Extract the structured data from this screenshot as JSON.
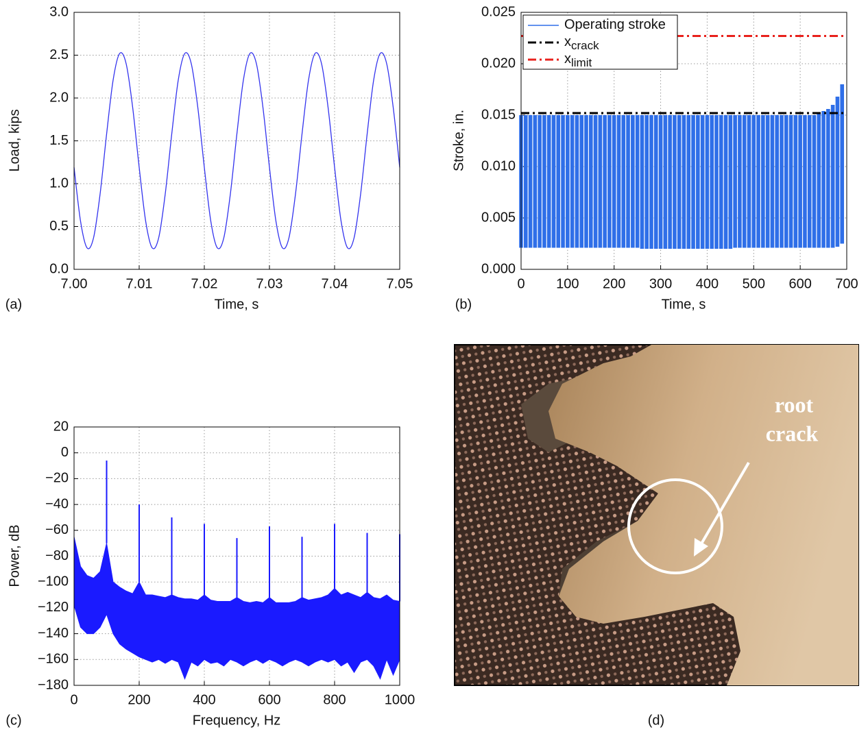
{
  "chart_data": [
    {
      "type": "line",
      "panel": "(a)",
      "xlabel": "Time, s",
      "ylabel": "Load, kips",
      "color": "#3333ee",
      "grid": true,
      "xlim": [
        7.0,
        7.05
      ],
      "xticks": [
        {
          "value": 7.0,
          "label": "7.00"
        },
        7.01,
        7.02,
        7.03,
        7.04,
        7.05
      ],
      "ylim": [
        0,
        3
      ],
      "yticks": [
        {
          "value": 0,
          "label": "0.0"
        },
        0.5,
        {
          "value": 1,
          "label": "1.0"
        },
        1.5,
        {
          "value": 2,
          "label": "2.0"
        },
        2.5,
        {
          "value": 3,
          "label": "3.0"
        }
      ],
      "x": [
        7.0,
        7.001,
        7.002,
        7.003,
        7.004,
        7.005,
        7.006,
        7.007,
        7.008,
        7.009,
        7.01,
        7.011,
        7.012,
        7.013,
        7.014,
        7.015,
        7.016,
        7.017,
        7.018,
        7.019,
        7.02,
        7.021,
        7.022,
        7.023,
        7.024,
        7.025,
        7.026,
        7.027,
        7.028,
        7.029,
        7.03,
        7.031,
        7.032,
        7.033,
        7.034,
        7.035,
        7.036,
        7.037,
        7.038,
        7.039,
        7.04,
        7.041,
        7.042,
        7.043,
        7.044,
        7.045,
        7.046,
        7.047,
        7.048,
        7.049,
        7.05
      ],
      "values": [
        1.19,
        0.56,
        0.25,
        0.37,
        0.88,
        1.58,
        2.21,
        2.52,
        2.4,
        1.89,
        1.19,
        0.56,
        0.25,
        0.37,
        0.88,
        1.58,
        2.21,
        2.52,
        2.4,
        1.89,
        1.19,
        0.56,
        0.25,
        0.37,
        0.88,
        1.58,
        2.21,
        2.52,
        2.4,
        1.89,
        1.19,
        0.56,
        0.25,
        0.37,
        0.88,
        1.58,
        2.21,
        2.52,
        2.4,
        1.89,
        1.19,
        0.56,
        0.25,
        0.37,
        0.88,
        1.58,
        2.21,
        2.52,
        2.4,
        1.89,
        1.19
      ]
    },
    {
      "type": "range",
      "panel": "(b)",
      "xlabel": "Time, s",
      "ylabel": "Stroke, in.",
      "grid": true,
      "legend": "upper left",
      "xlim": [
        0,
        700
      ],
      "xticks": [
        0,
        100,
        200,
        300,
        400,
        500,
        600,
        700
      ],
      "ylim": [
        0,
        0.025
      ],
      "yticks": [
        {
          "value": 0,
          "label": "0.000"
        },
        0.005,
        {
          "value": 0.01,
          "label": "0.010"
        },
        0.015,
        {
          "value": 0.02,
          "label": "0.020"
        },
        0.025
      ],
      "x": [
        0,
        10,
        20,
        30,
        40,
        50,
        60,
        70,
        80,
        90,
        100,
        110,
        120,
        130,
        140,
        150,
        160,
        170,
        180,
        190,
        200,
        210,
        220,
        230,
        240,
        250,
        260,
        270,
        280,
        290,
        300,
        310,
        320,
        330,
        340,
        350,
        360,
        370,
        380,
        390,
        400,
        410,
        420,
        430,
        440,
        450,
        460,
        470,
        480,
        490,
        500,
        510,
        520,
        530,
        540,
        550,
        560,
        570,
        580,
        590,
        600,
        610,
        620,
        630,
        640,
        650,
        660,
        670,
        680,
        690
      ],
      "series": [
        {
          "name": "Operating stroke",
          "color": "#2f6fe8",
          "values": [
            0.015,
            0.015,
            0.015,
            0.015,
            0.015,
            0.015,
            0.015,
            0.015,
            0.015,
            0.015,
            0.015,
            0.015,
            0.015,
            0.015,
            0.015,
            0.015,
            0.015,
            0.015,
            0.015,
            0.015,
            0.015,
            0.015,
            0.015,
            0.015,
            0.015,
            0.015,
            0.015,
            0.015,
            0.015,
            0.015,
            0.015,
            0.015,
            0.015,
            0.015,
            0.015,
            0.015,
            0.015,
            0.015,
            0.015,
            0.015,
            0.015,
            0.015,
            0.015,
            0.015,
            0.015,
            0.015,
            0.015,
            0.015,
            0.015,
            0.015,
            0.015,
            0.015,
            0.015,
            0.015,
            0.015,
            0.015,
            0.015,
            0.015,
            0.015,
            0.015,
            0.015,
            0.015,
            0.015,
            0.015,
            0.0152,
            0.0154,
            0.0156,
            0.016,
            0.0168,
            0.018
          ],
          "lower": [
            0.0021,
            0.0021,
            0.0021,
            0.0021,
            0.0021,
            0.0021,
            0.0021,
            0.0021,
            0.0021,
            0.0021,
            0.0021,
            0.0021,
            0.0021,
            0.0021,
            0.0021,
            0.0021,
            0.0021,
            0.0021,
            0.0021,
            0.0021,
            0.0021,
            0.0021,
            0.0021,
            0.0021,
            0.0021,
            0.0021,
            0.002,
            0.002,
            0.002,
            0.002,
            0.002,
            0.002,
            0.002,
            0.002,
            0.002,
            0.002,
            0.002,
            0.002,
            0.002,
            0.002,
            0.002,
            0.002,
            0.002,
            0.002,
            0.002,
            0.002,
            0.0021,
            0.0021,
            0.0021,
            0.0021,
            0.0021,
            0.0021,
            0.0021,
            0.0021,
            0.0021,
            0.0021,
            0.0021,
            0.0021,
            0.0021,
            0.0021,
            0.0021,
            0.0021,
            0.0021,
            0.0021,
            0.0021,
            0.0021,
            0.0021,
            0.0021,
            0.0022,
            0.0025
          ]
        }
      ],
      "hlines": [
        {
          "name": "x",
          "subscript": "crack",
          "color": "#000000",
          "value": 0.0152
        },
        {
          "name": "x",
          "subscript": "limit",
          "color": "#e8211c",
          "value": 0.0227
        }
      ]
    },
    {
      "type": "spectrum",
      "panel": "(c)",
      "xlabel": "Frequency, Hz",
      "ylabel": "Power, dB",
      "color": "#1a1aff",
      "grid": true,
      "xlim": [
        0,
        1000
      ],
      "xticks": [
        0,
        200,
        400,
        600,
        800,
        1000
      ],
      "ylim": [
        -180,
        20
      ],
      "yticks": [
        20,
        0,
        {
          "value": -20,
          "label": "−20"
        },
        {
          "value": -40,
          "label": "−40"
        },
        {
          "value": -60,
          "label": "−60"
        },
        {
          "value": -80,
          "label": "−80"
        },
        {
          "value": -100,
          "label": "−100"
        },
        {
          "value": -120,
          "label": "−120"
        },
        {
          "value": -140,
          "label": "−140"
        },
        {
          "value": -160,
          "label": "−160"
        },
        {
          "value": -180,
          "label": "−180"
        }
      ],
      "x": [
        0,
        20,
        40,
        60,
        80,
        100,
        120,
        140,
        160,
        180,
        200,
        220,
        240,
        260,
        280,
        300,
        320,
        340,
        360,
        380,
        400,
        420,
        440,
        460,
        480,
        500,
        520,
        540,
        560,
        580,
        600,
        620,
        640,
        660,
        680,
        700,
        720,
        740,
        760,
        780,
        800,
        820,
        840,
        860,
        880,
        900,
        920,
        940,
        960,
        980,
        1000
      ],
      "values": [
        -65,
        -88,
        -95,
        -97,
        -92,
        -70,
        -100,
        -104,
        -107,
        -109,
        -100,
        -110,
        -110,
        -111,
        -112,
        -110,
        -112,
        -113,
        -113,
        -114,
        -110,
        -114,
        -115,
        -115,
        -115,
        -112,
        -115,
        -116,
        -115,
        -116,
        -112,
        -116,
        -116,
        -116,
        -115,
        -112,
        -114,
        -113,
        -112,
        -110,
        -105,
        -110,
        -108,
        -110,
        -112,
        -108,
        -112,
        -113,
        -110,
        -114,
        -115
      ],
      "lower": [
        -118,
        -135,
        -140,
        -140,
        -135,
        -125,
        -140,
        -148,
        -152,
        -155,
        -158,
        -160,
        -162,
        -160,
        -163,
        -160,
        -162,
        -175,
        -162,
        -165,
        -160,
        -163,
        -162,
        -165,
        -160,
        -162,
        -165,
        -162,
        -160,
        -163,
        -160,
        -162,
        -165,
        -162,
        -160,
        -162,
        -165,
        -162,
        -160,
        -162,
        -160,
        -165,
        -162,
        -170,
        -162,
        -160,
        -165,
        -175,
        -160,
        -172,
        -160
      ],
      "peaks": {
        "x": [
          100,
          200,
          300,
          400,
          500,
          600,
          700,
          800,
          900,
          1000
        ],
        "values": [
          -6,
          -40,
          -50,
          -55,
          -66,
          -57,
          -65,
          -55,
          -62,
          -63
        ]
      }
    }
  ],
  "photo": {
    "panel": "(d)",
    "annotation": [
      "root",
      "crack"
    ]
  }
}
